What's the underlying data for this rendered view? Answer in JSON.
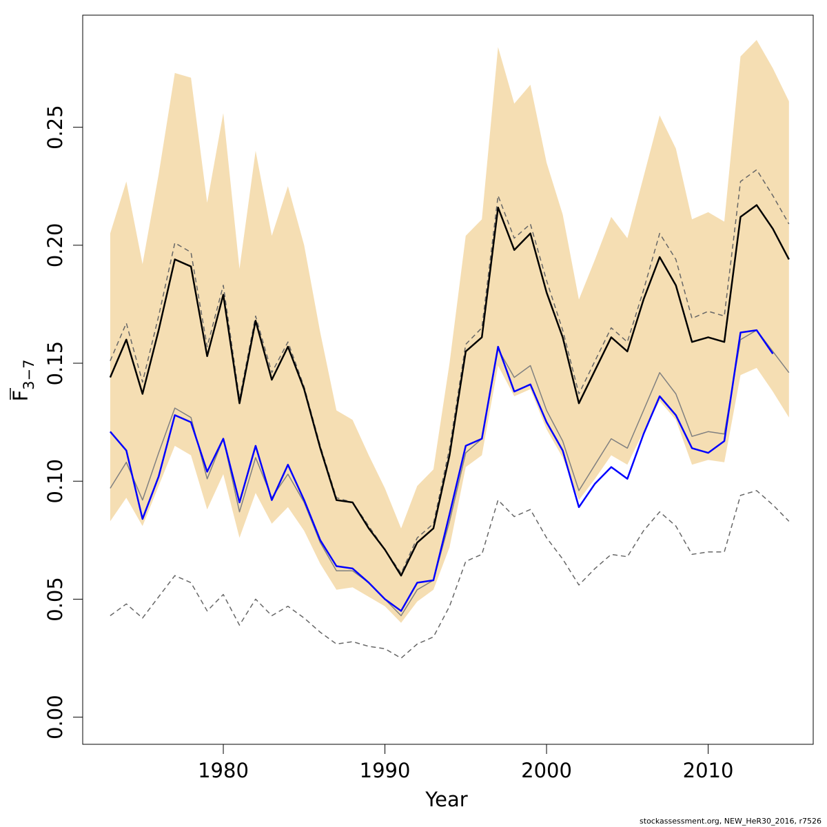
{
  "chart_data": {
    "type": "line",
    "xlabel": "Year",
    "ylabel_main": "F",
    "ylabel_sub": "3−7",
    "xlim": [
      1971.3,
      2016.5
    ],
    "ylim": [
      -0.0115,
      0.2975
    ],
    "x_ticks": [
      1980,
      1990,
      2000,
      2010
    ],
    "y_ticks": [
      0.0,
      0.05,
      0.1,
      0.15,
      0.2,
      0.25
    ],
    "y_tick_labels": [
      "0.00",
      "0.05",
      "0.10",
      "0.15",
      "0.20",
      "0.25"
    ],
    "grid": false,
    "colors": {
      "band": "#f5deb3",
      "main": "#000000",
      "blue": "#0000ff",
      "gray": "#808080",
      "dashed": "#666666"
    },
    "years": [
      1973,
      1974,
      1975,
      1976,
      1977,
      1978,
      1979,
      1980,
      1981,
      1982,
      1983,
      1984,
      1985,
      1986,
      1987,
      1988,
      1989,
      1990,
      1991,
      1992,
      1993,
      1994,
      1995,
      1996,
      1997,
      1998,
      1999,
      2000,
      2001,
      2002,
      2003,
      2004,
      2005,
      2006,
      2007,
      2008,
      2009,
      2010,
      2011,
      2012,
      2013,
      2014,
      2015
    ],
    "band": {
      "upper": [
        0.205,
        0.227,
        0.192,
        0.23,
        0.273,
        0.271,
        0.218,
        0.256,
        0.19,
        0.24,
        0.204,
        0.225,
        0.2,
        0.163,
        0.13,
        0.126,
        0.111,
        0.097,
        0.08,
        0.098,
        0.105,
        0.15,
        0.204,
        0.211,
        0.284,
        0.26,
        0.268,
        0.235,
        0.213,
        0.177,
        0.194,
        0.212,
        0.203,
        0.229,
        0.255,
        0.241,
        0.211,
        0.214,
        0.21,
        0.28,
        0.287,
        0.275,
        0.261
      ],
      "lower": [
        0.083,
        0.093,
        0.081,
        0.098,
        0.115,
        0.111,
        0.088,
        0.103,
        0.076,
        0.095,
        0.082,
        0.089,
        0.079,
        0.065,
        0.054,
        0.055,
        0.051,
        0.047,
        0.04,
        0.049,
        0.054,
        0.072,
        0.106,
        0.111,
        0.149,
        0.136,
        0.139,
        0.122,
        0.11,
        0.092,
        0.101,
        0.111,
        0.107,
        0.121,
        0.134,
        0.126,
        0.107,
        0.109,
        0.108,
        0.145,
        0.148,
        0.138,
        0.127
      ]
    },
    "series": [
      {
        "style": "black-solid",
        "values": [
          0.144,
          0.16,
          0.137,
          0.164,
          0.194,
          0.191,
          0.153,
          0.179,
          0.133,
          0.168,
          0.143,
          0.157,
          0.139,
          0.114,
          0.092,
          0.091,
          0.08,
          0.071,
          0.06,
          0.074,
          0.08,
          0.111,
          0.155,
          0.161,
          0.216,
          0.198,
          0.205,
          0.18,
          0.161,
          0.133,
          0.147,
          0.161,
          0.155,
          0.177,
          0.195,
          0.183,
          0.159,
          0.161,
          0.159,
          0.212,
          0.217,
          0.207,
          0.194
        ]
      },
      {
        "style": "gray-dashed-upper",
        "values": [
          0.151,
          0.167,
          0.142,
          0.17,
          0.201,
          0.197,
          0.157,
          0.183,
          0.135,
          0.17,
          0.146,
          0.159,
          0.14,
          0.115,
          0.093,
          0.091,
          0.081,
          0.071,
          0.061,
          0.076,
          0.082,
          0.114,
          0.158,
          0.165,
          0.221,
          0.203,
          0.209,
          0.185,
          0.164,
          0.137,
          0.151,
          0.165,
          0.159,
          0.181,
          0.205,
          0.194,
          0.169,
          0.172,
          0.17,
          0.227,
          0.232,
          0.221,
          0.209
        ]
      },
      {
        "style": "gray-solid",
        "values": [
          0.097,
          0.108,
          0.092,
          0.112,
          0.131,
          0.127,
          0.101,
          0.118,
          0.087,
          0.11,
          0.093,
          0.103,
          0.091,
          0.074,
          0.062,
          0.062,
          0.057,
          0.05,
          0.043,
          0.054,
          0.058,
          0.083,
          0.112,
          0.118,
          0.156,
          0.144,
          0.149,
          0.13,
          0.117,
          0.096,
          0.107,
          0.118,
          0.114,
          0.13,
          0.146,
          0.137,
          0.119,
          0.121,
          0.12,
          0.16,
          0.164,
          0.155,
          0.146
        ]
      },
      {
        "style": "blue-solid",
        "values": [
          0.121,
          0.113,
          0.084,
          0.102,
          0.128,
          0.125,
          0.104,
          0.118,
          0.091,
          0.115,
          0.092,
          0.107,
          0.092,
          0.075,
          0.064,
          0.063,
          0.057,
          0.05,
          0.045,
          0.057,
          0.058,
          0.086,
          0.115,
          0.118,
          0.157,
          0.138,
          0.141,
          0.125,
          0.113,
          0.089,
          0.099,
          0.106,
          0.101,
          0.12,
          0.136,
          0.128,
          0.114,
          0.112,
          0.117,
          0.163,
          0.164,
          0.154
        ]
      },
      {
        "style": "gray-dashed-lower",
        "values": [
          0.043,
          0.048,
          0.042,
          0.051,
          0.06,
          0.057,
          0.045,
          0.052,
          0.039,
          0.05,
          0.043,
          0.047,
          0.042,
          0.036,
          0.031,
          0.032,
          0.03,
          0.029,
          0.025,
          0.031,
          0.034,
          0.047,
          0.066,
          0.069,
          0.092,
          0.085,
          0.088,
          0.076,
          0.067,
          0.056,
          0.063,
          0.069,
          0.068,
          0.079,
          0.087,
          0.081,
          0.069,
          0.07,
          0.07,
          0.094,
          0.096,
          0.09,
          0.083
        ]
      }
    ]
  },
  "footer": "stockassessment.org, NEW_HeR30_2016, r7526"
}
